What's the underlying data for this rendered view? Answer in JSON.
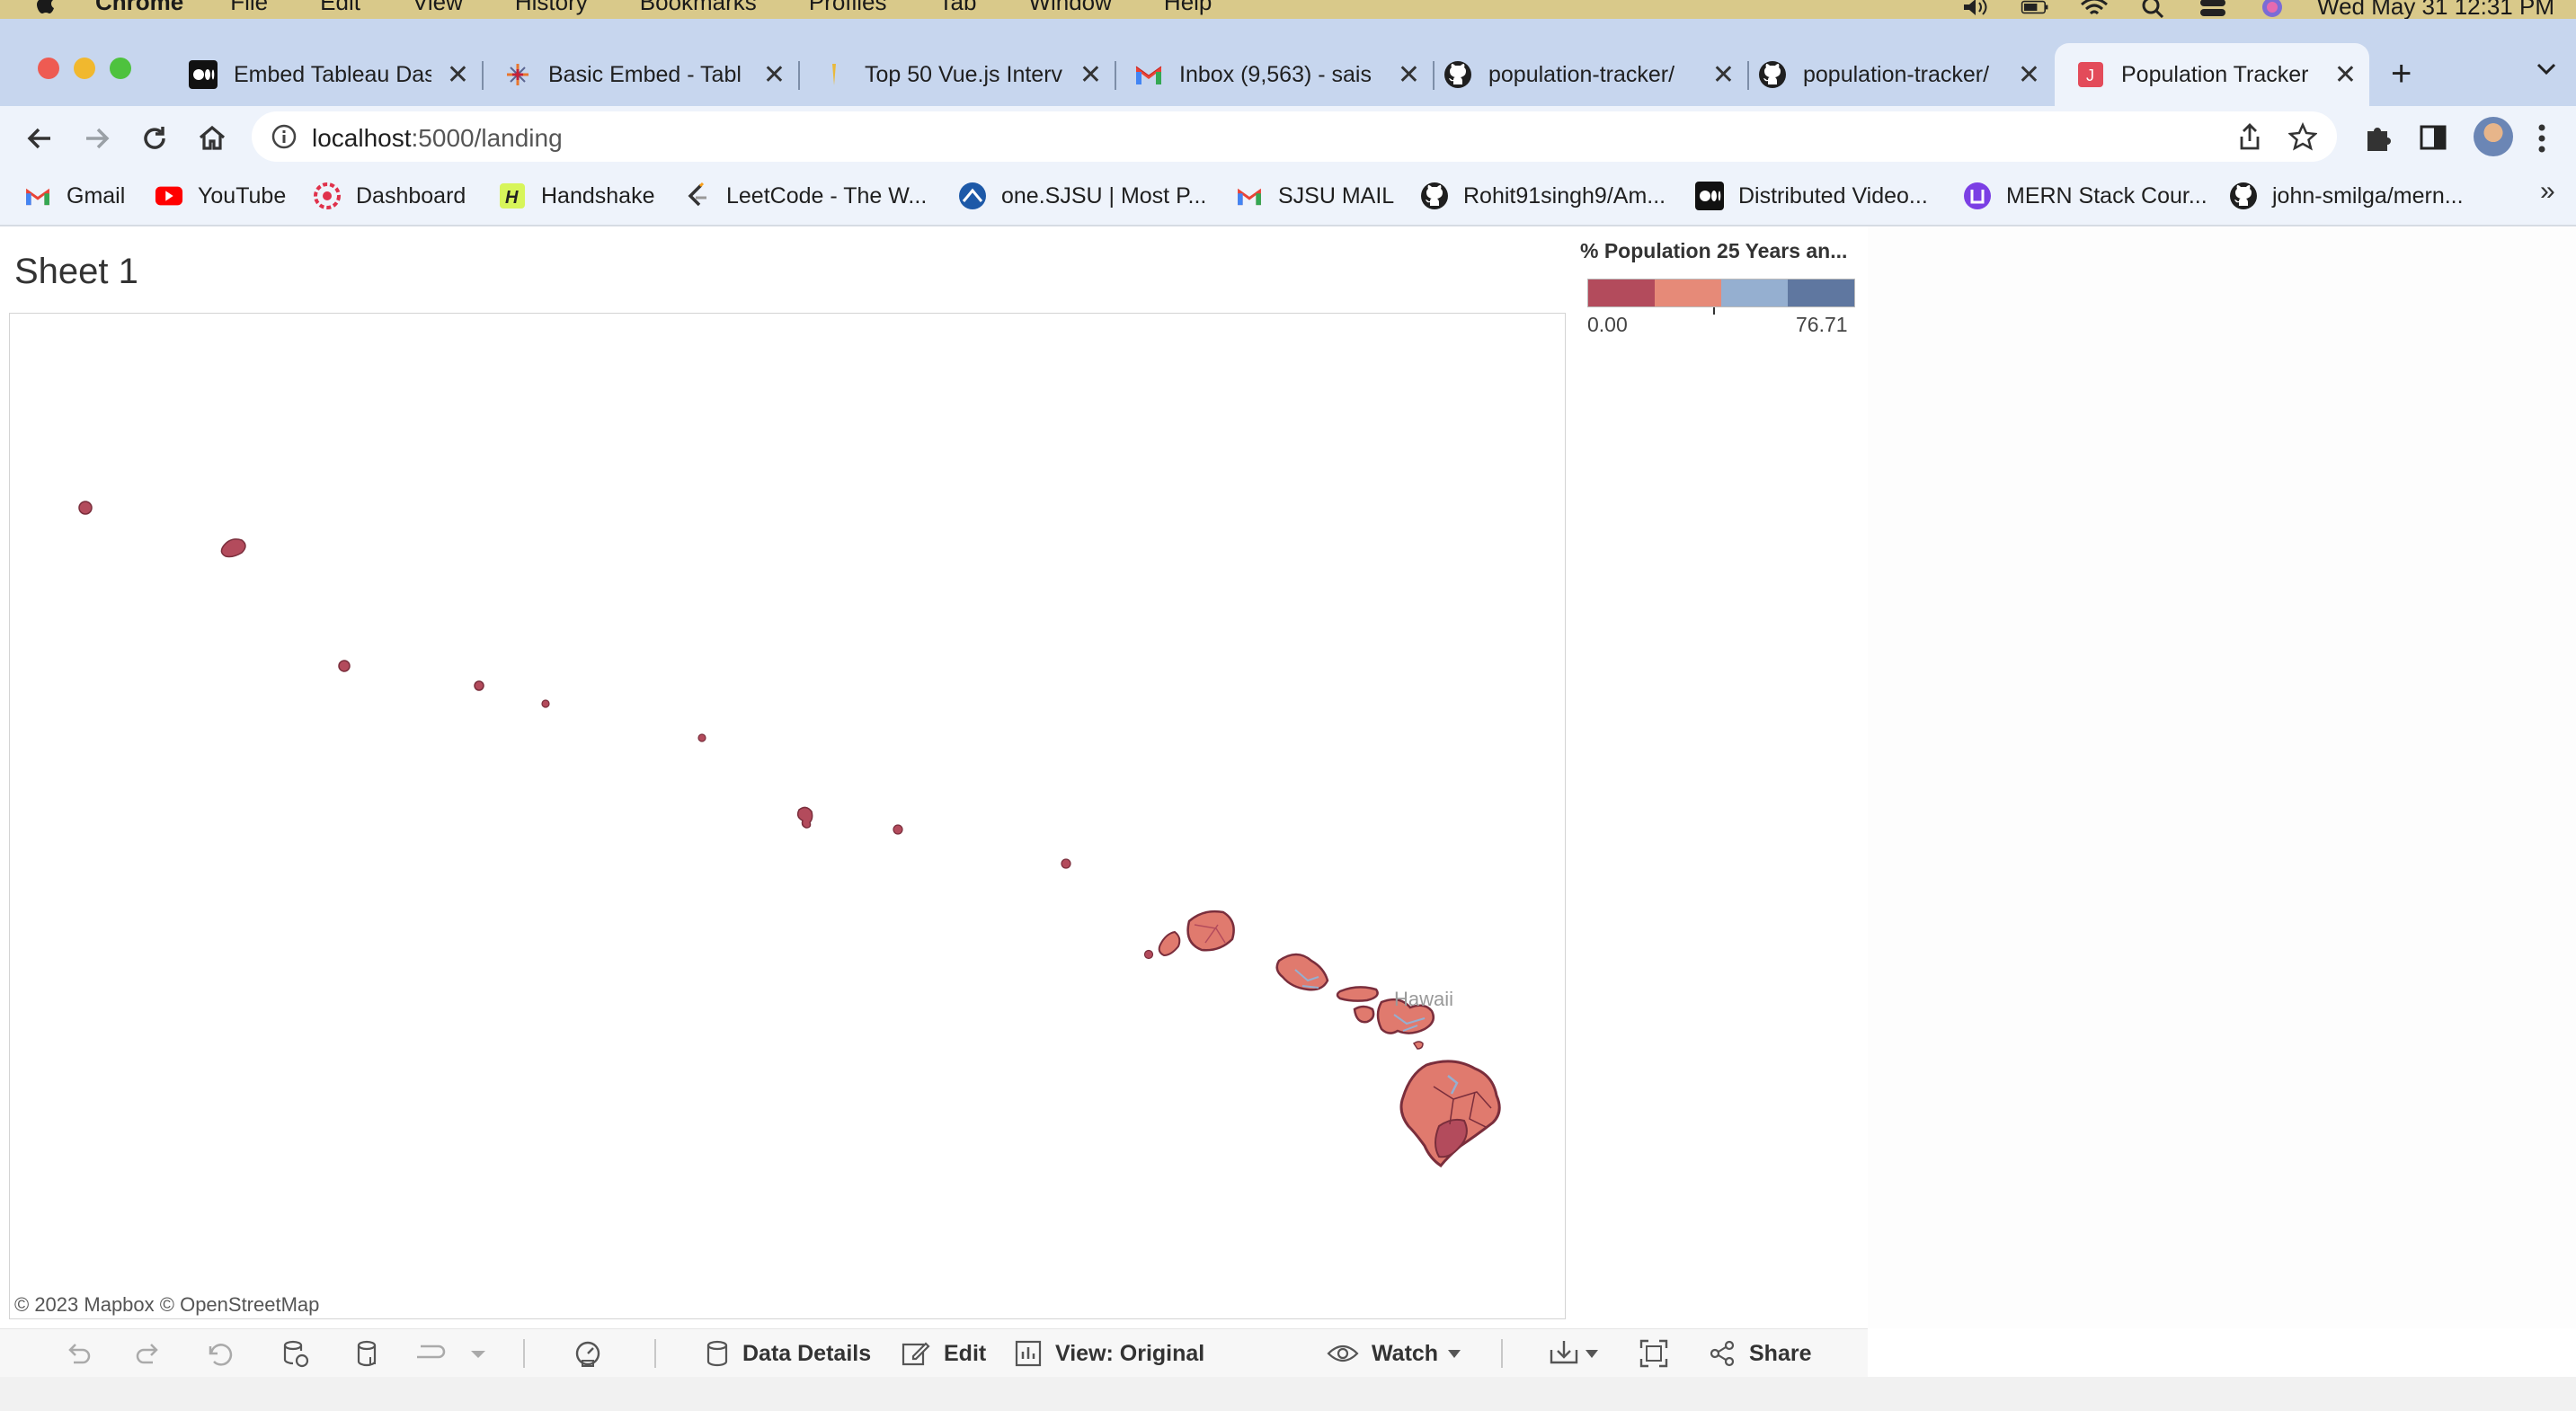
{
  "menubar": {
    "app": "Chrome",
    "items": [
      "File",
      "Edit",
      "View",
      "History",
      "Bookmarks",
      "Profiles",
      "Tab",
      "Window",
      "Help"
    ],
    "clock": "Wed May 31  12:31 PM"
  },
  "tabs": [
    {
      "title": "Embed Tableau Das",
      "icon": "medium-icon",
      "active": false
    },
    {
      "title": "Basic Embed - Tabl",
      "icon": "tableau-icon",
      "active": false
    },
    {
      "title": "Top 50 Vue.js Interv",
      "icon": "page-icon",
      "active": false
    },
    {
      "title": "Inbox (9,563) - sais",
      "icon": "gmail-icon",
      "active": false
    },
    {
      "title": "population-tracker/",
      "icon": "github-icon",
      "active": false
    },
    {
      "title": "population-tracker/",
      "icon": "github-icon",
      "active": false
    },
    {
      "title": "Population Tracker",
      "icon": "app-icon",
      "active": true
    }
  ],
  "address": {
    "host": "localhost",
    "path": ":5000/landing"
  },
  "bookmarks": [
    {
      "label": "Gmail",
      "icon": "gmail-icon"
    },
    {
      "label": "YouTube",
      "icon": "youtube-icon"
    },
    {
      "label": "Dashboard",
      "icon": "dashboard-icon"
    },
    {
      "label": "Handshake",
      "icon": "handshake-icon"
    },
    {
      "label": "LeetCode - The W...",
      "icon": "leetcode-icon"
    },
    {
      "label": "one.SJSU | Most P...",
      "icon": "sjsu-icon"
    },
    {
      "label": "SJSU MAIL",
      "icon": "gmail-icon"
    },
    {
      "label": "Rohit91singh9/Am...",
      "icon": "github-icon"
    },
    {
      "label": "Distributed Video...",
      "icon": "medium-icon"
    },
    {
      "label": "MERN Stack Cour...",
      "icon": "mern-icon"
    },
    {
      "label": "john-smilga/mern...",
      "icon": "github-icon"
    }
  ],
  "viz": {
    "sheet_title": "Sheet 1",
    "attribution": "© 2023 Mapbox  © OpenStreetMap",
    "map_label": "Hawaii",
    "legend": {
      "title": "% Population 25 Years an...",
      "min": "0.00",
      "max": "76.71",
      "colors": [
        "#b34b5c",
        "#e68a78",
        "#95afd0",
        "#5f77a0"
      ]
    },
    "colors": {
      "low": "#b34b5c",
      "mid_low": "#e07a6e",
      "mid_high": "#95afd0",
      "high": "#5f77a0",
      "outline": "#7a2e3c"
    }
  },
  "tableau_toolbar": {
    "data_details": "Data Details",
    "edit": "Edit",
    "view": "View: Original",
    "watch": "Watch",
    "share": "Share"
  }
}
